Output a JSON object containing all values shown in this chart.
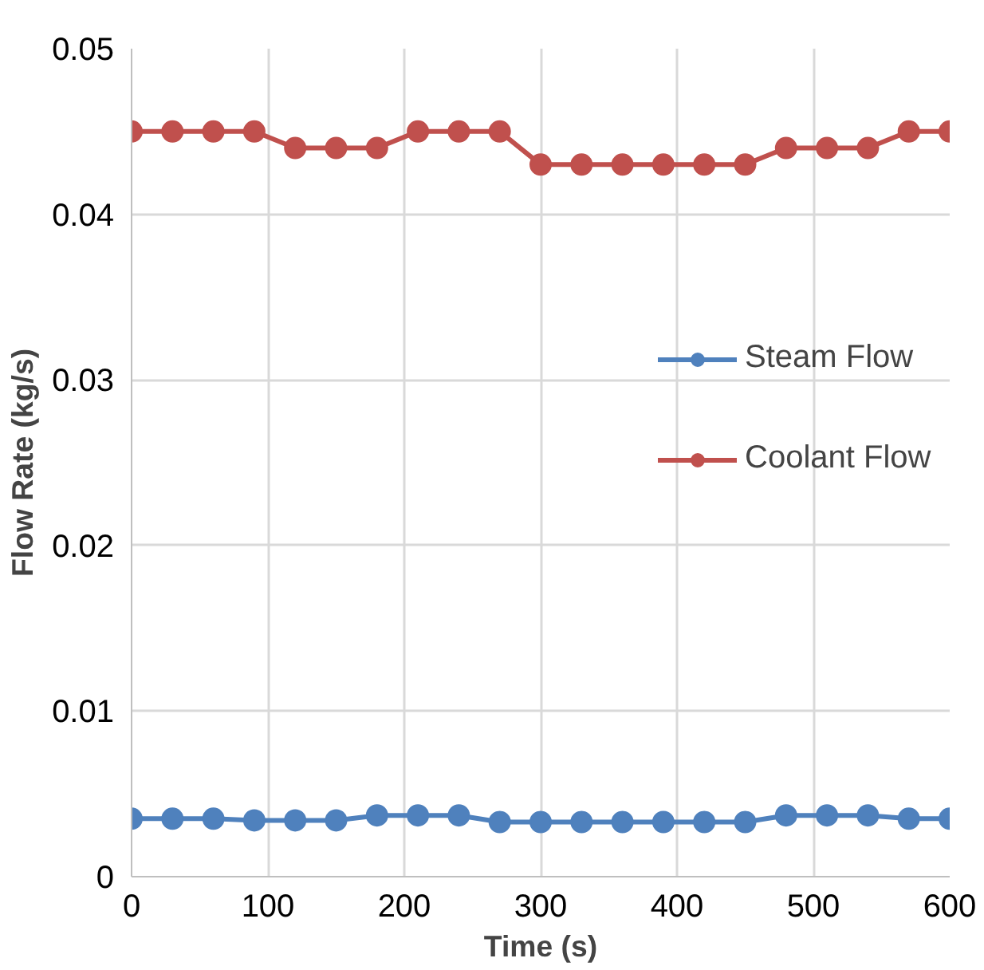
{
  "chart_data": {
    "type": "line",
    "xlabel": "Time (s)",
    "ylabel": "Flow Rate (kg/s)",
    "x": [
      0,
      30,
      60,
      90,
      120,
      150,
      180,
      210,
      240,
      270,
      300,
      330,
      360,
      390,
      420,
      450,
      480,
      510,
      540,
      570,
      600
    ],
    "series": [
      {
        "name": "Steam Flow",
        "color": "#4f81bd",
        "values": [
          0.0035,
          0.0035,
          0.0035,
          0.0034,
          0.0034,
          0.0034,
          0.0037,
          0.0037,
          0.0037,
          0.0033,
          0.0033,
          0.0033,
          0.0033,
          0.0033,
          0.0033,
          0.0033,
          0.0037,
          0.0037,
          0.0037,
          0.0035,
          0.0035
        ]
      },
      {
        "name": "Coolant Flow",
        "color": "#c0504d",
        "values": [
          0.045,
          0.045,
          0.045,
          0.045,
          0.044,
          0.044,
          0.044,
          0.045,
          0.045,
          0.045,
          0.043,
          0.043,
          0.043,
          0.043,
          0.043,
          0.043,
          0.044,
          0.044,
          0.044,
          0.045,
          0.045
        ]
      }
    ],
    "xlim": [
      0,
      600
    ],
    "xticks": [
      0,
      100,
      200,
      300,
      400,
      500,
      600
    ],
    "ylim": [
      0,
      0.05
    ],
    "yticks": [
      {
        "value": 0,
        "label": "0"
      },
      {
        "value": 0.01,
        "label": "0.01"
      },
      {
        "value": 0.02,
        "label": "0.02"
      },
      {
        "value": 0.03,
        "label": "0.03"
      },
      {
        "value": 0.04,
        "label": "0.04"
      },
      {
        "value": 0.05,
        "label": "0.05"
      }
    ],
    "grid": true,
    "legend": "right",
    "marker": "circle",
    "line_style": "solid"
  }
}
